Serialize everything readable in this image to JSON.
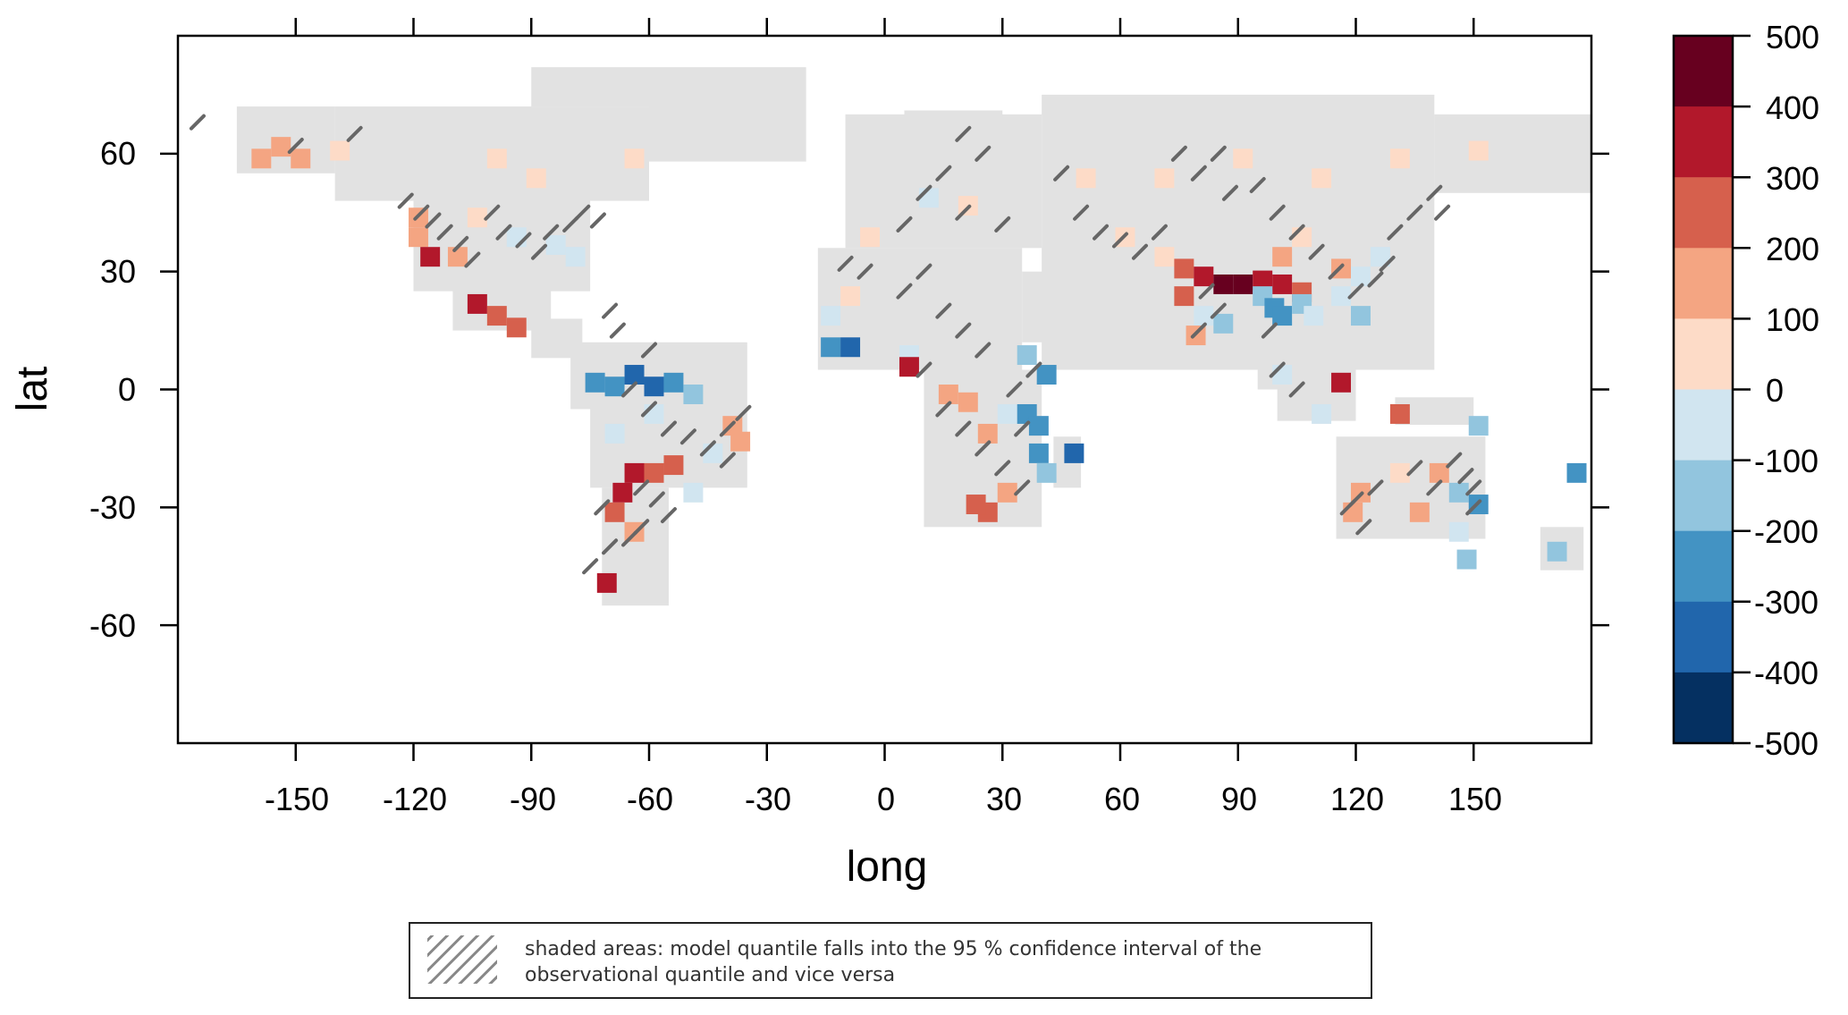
{
  "axes": {
    "xlabel": "long",
    "ylabel": "lat",
    "xlim": [
      -180,
      180
    ],
    "ylim": [
      -90,
      90
    ],
    "xticks": [
      "-150",
      "-120",
      "-90",
      "-60",
      "-30",
      "0",
      "30",
      "60",
      "90",
      "120",
      "150"
    ],
    "yticks": [
      "60",
      "30",
      "0",
      "-30",
      "-60"
    ]
  },
  "colorbar": {
    "labels": [
      "500",
      "400",
      "300",
      "200",
      "100",
      "0",
      "-100",
      "-200",
      "-300",
      "-400",
      "-500"
    ],
    "colors": [
      "#67001f",
      "#b2182b",
      "#d6604d",
      "#f4a582",
      "#fddbc7",
      "#d1e5f0",
      "#92c5de",
      "#4393c3",
      "#2166ac",
      "#053061"
    ]
  },
  "note": {
    "line1": "shaded areas: model quantile falls into the 95 % confidence interval of the",
    "line2": "observational quantile and vice versa"
  },
  "chart_data": {
    "type": "heatmap",
    "xlabel": "long",
    "ylabel": "lat",
    "xlim": [
      -180,
      180
    ],
    "ylim": [
      -90,
      90
    ],
    "legend_placement": "right",
    "land_color": "#e2e2e2",
    "color_scale": {
      "breaks": [
        -500,
        -400,
        -300,
        -200,
        -100,
        0,
        100,
        200,
        300,
        400,
        500
      ],
      "colors": [
        "#053061",
        "#2166ac",
        "#4393c3",
        "#92c5de",
        "#d1e5f0",
        "#fddbc7",
        "#f4a582",
        "#d6604d",
        "#b2182b",
        "#67001f"
      ]
    },
    "land": [
      [
        -165,
        55,
        -140,
        72
      ],
      [
        -140,
        48,
        -60,
        72
      ],
      [
        -120,
        25,
        -75,
        50
      ],
      [
        -90,
        72,
        -60,
        82
      ],
      [
        -60,
        58,
        -20,
        82
      ],
      [
        -110,
        15,
        -85,
        28
      ],
      [
        -90,
        8,
        -77,
        18
      ],
      [
        -80,
        -5,
        -35,
        12
      ],
      [
        -75,
        -25,
        -35,
        -5
      ],
      [
        -72,
        -55,
        -55,
        -25
      ],
      [
        -10,
        36,
        40,
        70
      ],
      [
        5,
        60,
        30,
        71
      ],
      [
        -17,
        5,
        35,
        36
      ],
      [
        10,
        -35,
        40,
        5
      ],
      [
        35,
        12,
        50,
        30
      ],
      [
        43,
        -25,
        50,
        -12
      ],
      [
        40,
        5,
        140,
        75
      ],
      [
        140,
        50,
        180,
        70
      ],
      [
        70,
        10,
        90,
        28
      ],
      [
        95,
        0,
        110,
        20
      ],
      [
        110,
        20,
        125,
        40
      ],
      [
        100,
        -8,
        120,
        5
      ],
      [
        130,
        -9,
        150,
        -2
      ],
      [
        115,
        -38,
        153,
        -12
      ],
      [
        167,
        -46,
        178,
        -35
      ]
    ],
    "cells": [
      [
        -120,
        40,
        100
      ],
      [
        -117,
        35,
        300
      ],
      [
        -120,
        45,
        100
      ],
      [
        -110,
        35,
        100
      ],
      [
        -100,
        60,
        50
      ],
      [
        -90,
        55,
        50
      ],
      [
        -105,
        45,
        50
      ],
      [
        -95,
        40,
        -100
      ],
      [
        -85,
        38,
        -100
      ],
      [
        -80,
        35,
        -100
      ],
      [
        -100,
        20,
        200
      ],
      [
        -95,
        17,
        200
      ],
      [
        -105,
        23,
        300
      ],
      [
        -65,
        60,
        50
      ],
      [
        -75,
        3,
        -300
      ],
      [
        -70,
        2,
        -300
      ],
      [
        -65,
        5,
        -400
      ],
      [
        -60,
        2,
        -400
      ],
      [
        -55,
        3,
        -300
      ],
      [
        -50,
        0,
        -200
      ],
      [
        -60,
        -5,
        -100
      ],
      [
        -70,
        -10,
        -100
      ],
      [
        -65,
        -20,
        300
      ],
      [
        -68,
        -25,
        300
      ],
      [
        -60,
        -20,
        200
      ],
      [
        -55,
        -18,
        200
      ],
      [
        -45,
        -15,
        -100
      ],
      [
        -50,
        -25,
        -100
      ],
      [
        -65,
        -35,
        100
      ],
      [
        -70,
        -30,
        200
      ],
      [
        -72,
        -48,
        300
      ],
      [
        -40,
        -8,
        100
      ],
      [
        -38,
        -12,
        100
      ],
      [
        -155,
        63,
        100
      ],
      [
        -150,
        60,
        100
      ],
      [
        -160,
        60,
        100
      ],
      [
        -140,
        62,
        50
      ],
      [
        10,
        50,
        -100
      ],
      [
        20,
        48,
        50
      ],
      [
        -5,
        40,
        50
      ],
      [
        -10,
        25,
        50
      ],
      [
        -15,
        20,
        -100
      ],
      [
        -15,
        12,
        -300
      ],
      [
        -10,
        12,
        -400
      ],
      [
        5,
        10,
        -100
      ],
      [
        5,
        7,
        300
      ],
      [
        15,
        0,
        100
      ],
      [
        20,
        -2,
        100
      ],
      [
        25,
        -10,
        100
      ],
      [
        30,
        -5,
        -100
      ],
      [
        35,
        -5,
        -300
      ],
      [
        38,
        -8,
        -300
      ],
      [
        40,
        5,
        -300
      ],
      [
        35,
        10,
        -200
      ],
      [
        38,
        -15,
        -300
      ],
      [
        40,
        -20,
        -200
      ],
      [
        25,
        -30,
        200
      ],
      [
        22,
        -28,
        200
      ],
      [
        30,
        -25,
        100
      ],
      [
        47,
        -15,
        -400
      ],
      [
        50,
        55,
        50
      ],
      [
        70,
        55,
        50
      ],
      [
        90,
        60,
        50
      ],
      [
        110,
        55,
        50
      ],
      [
        130,
        60,
        50
      ],
      [
        150,
        62,
        50
      ],
      [
        60,
        40,
        50
      ],
      [
        70,
        35,
        50
      ],
      [
        75,
        32,
        200
      ],
      [
        80,
        30,
        300
      ],
      [
        85,
        28,
        400
      ],
      [
        90,
        28,
        400
      ],
      [
        95,
        29,
        300
      ],
      [
        100,
        28,
        300
      ],
      [
        105,
        26,
        200
      ],
      [
        95,
        25,
        -200
      ],
      [
        98,
        22,
        -300
      ],
      [
        100,
        20,
        -300
      ],
      [
        105,
        23,
        -200
      ],
      [
        108,
        20,
        -100
      ],
      [
        80,
        20,
        -100
      ],
      [
        78,
        15,
        100
      ],
      [
        85,
        18,
        -200
      ],
      [
        75,
        25,
        200
      ],
      [
        100,
        35,
        100
      ],
      [
        105,
        40,
        50
      ],
      [
        115,
        32,
        100
      ],
      [
        120,
        30,
        -100
      ],
      [
        125,
        35,
        -100
      ],
      [
        115,
        25,
        -100
      ],
      [
        120,
        20,
        -200
      ],
      [
        100,
        5,
        -100
      ],
      [
        115,
        3,
        300
      ],
      [
        110,
        -5,
        -100
      ],
      [
        130,
        -5,
        200
      ],
      [
        150,
        -8,
        -200
      ],
      [
        120,
        -25,
        100
      ],
      [
        130,
        -20,
        50
      ],
      [
        140,
        -20,
        100
      ],
      [
        145,
        -25,
        -200
      ],
      [
        150,
        -28,
        -300
      ],
      [
        145,
        -35,
        -100
      ],
      [
        135,
        -30,
        100
      ],
      [
        118,
        -30,
        100
      ],
      [
        147,
        -42,
        -200
      ],
      [
        170,
        -40,
        -200
      ],
      [
        175,
        -20,
        -300
      ]
    ],
    "hatches": [
      [
        -122,
        48
      ],
      [
        -118,
        45
      ],
      [
        -115,
        43
      ],
      [
        -112,
        40
      ],
      [
        -108,
        37
      ],
      [
        -105,
        33
      ],
      [
        -100,
        45
      ],
      [
        -97,
        40
      ],
      [
        -92,
        38
      ],
      [
        -88,
        35
      ],
      [
        -85,
        40
      ],
      [
        -80,
        42
      ],
      [
        -77,
        45
      ],
      [
        -73,
        43
      ],
      [
        -135,
        65
      ],
      [
        -150,
        62
      ],
      [
        -175,
        68
      ],
      [
        -70,
        20
      ],
      [
        -68,
        15
      ],
      [
        -60,
        10
      ],
      [
        -65,
        0
      ],
      [
        -60,
        -5
      ],
      [
        -55,
        -10
      ],
      [
        -50,
        -12
      ],
      [
        -45,
        -15
      ],
      [
        -40,
        -10
      ],
      [
        -62,
        -25
      ],
      [
        -58,
        -28
      ],
      [
        -55,
        -32
      ],
      [
        -62,
        -35
      ],
      [
        -65,
        -38
      ],
      [
        -70,
        -40
      ],
      [
        -75,
        -45
      ],
      [
        -72,
        -30
      ],
      [
        -40,
        -18
      ],
      [
        -36,
        -6
      ],
      [
        20,
        65
      ],
      [
        25,
        60
      ],
      [
        15,
        55
      ],
      [
        10,
        50
      ],
      [
        20,
        45
      ],
      [
        30,
        42
      ],
      [
        5,
        42
      ],
      [
        -5,
        30
      ],
      [
        -10,
        32
      ],
      [
        5,
        25
      ],
      [
        10,
        30
      ],
      [
        15,
        20
      ],
      [
        20,
        15
      ],
      [
        25,
        10
      ],
      [
        10,
        5
      ],
      [
        15,
        -5
      ],
      [
        20,
        -10
      ],
      [
        25,
        -15
      ],
      [
        30,
        -20
      ],
      [
        35,
        -25
      ],
      [
        33,
        0
      ],
      [
        38,
        5
      ],
      [
        35,
        -10
      ],
      [
        45,
        55
      ],
      [
        50,
        45
      ],
      [
        55,
        40
      ],
      [
        60,
        38
      ],
      [
        65,
        35
      ],
      [
        70,
        40
      ],
      [
        75,
        60
      ],
      [
        80,
        55
      ],
      [
        85,
        60
      ],
      [
        88,
        50
      ],
      [
        95,
        52
      ],
      [
        100,
        45
      ],
      [
        105,
        40
      ],
      [
        110,
        35
      ],
      [
        115,
        30
      ],
      [
        120,
        25
      ],
      [
        125,
        28
      ],
      [
        128,
        32
      ],
      [
        130,
        40
      ],
      [
        135,
        45
      ],
      [
        140,
        50
      ],
      [
        142,
        45
      ],
      [
        145,
        -18
      ],
      [
        148,
        -22
      ],
      [
        150,
        -25
      ],
      [
        150,
        -30
      ],
      [
        140,
        -25
      ],
      [
        135,
        -20
      ],
      [
        125,
        -25
      ],
      [
        120,
        -28
      ],
      [
        118,
        -30
      ],
      [
        122,
        -35
      ],
      [
        98,
        15
      ],
      [
        100,
        5
      ],
      [
        105,
        0
      ],
      [
        85,
        20
      ],
      [
        80,
        15
      ],
      [
        82,
        25
      ]
    ]
  }
}
